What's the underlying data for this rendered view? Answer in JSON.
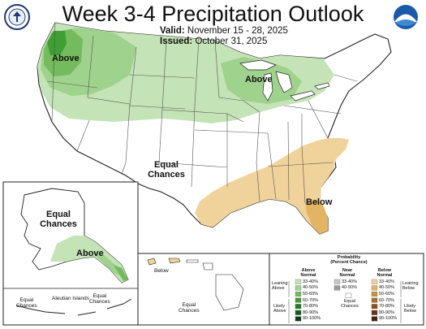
{
  "title": "Week 3-4 Precipitation Outlook",
  "valid_label": "Valid:",
  "valid_value": "November 15 - 28, 2025",
  "issued_label": "Issued:",
  "issued_value": "October 31, 2025",
  "map_labels": {
    "pnw_above": "Above",
    "greatlakes_above": "Above",
    "southeast_below": "Below",
    "conus_ec_line1": "Equal",
    "conus_ec_line2": "Chances",
    "alaska_ec_line1": "Equal",
    "alaska_ec_line2": "Chances",
    "alaska_above": "Above",
    "hawaii_below": "Below",
    "hawaii_ec_line1": "Equal",
    "hawaii_ec_line2": "Chances",
    "aleutian_label": "Aleutian Islands",
    "aleutian_ec_left_line1": "Equal",
    "aleutian_ec_left_line2": "Chances",
    "aleutian_ec_right_line1": "Equal",
    "aleutian_ec_right_line2": "Chances"
  },
  "legend": {
    "title_line1": "Probability",
    "title_line2": "(Percent Chance)",
    "col_above_line1": "Above",
    "col_above_line2": "Normal",
    "col_near_line1": "Near",
    "col_near_line2": "Normal",
    "col_below_line1": "Below",
    "col_below_line2": "Normal",
    "above_ranges": [
      "33-40%",
      "40-50%",
      "50-60%",
      "60-70%",
      "70-80%",
      "80-90%",
      "90-100%"
    ],
    "above_colors": [
      "#c4e3b7",
      "#9fd28c",
      "#73bb5d",
      "#3f9e34",
      "#227a24",
      "#155c1b",
      "#0b3d12"
    ],
    "near_ranges": [
      "33-40%",
      "40-50%"
    ],
    "near_colors": [
      "#c8c8c8",
      "#9a9a9a"
    ],
    "below_ranges": [
      "33-40%",
      "40-50%",
      "50-60%",
      "60-70%",
      "70-80%",
      "80-90%",
      "90-100%"
    ],
    "below_colors": [
      "#f0d39a",
      "#e2b463",
      "#d09432",
      "#b16b22",
      "#8c4f1a",
      "#6b3413",
      "#4a220c"
    ],
    "equal_chances_line1": "Equal",
    "equal_chances_line2": "Chances",
    "leaning_above_line1": "Leaning",
    "leaning_above_line2": "Above",
    "likely_above_line1": "Likely",
    "likely_above_line2": "Above",
    "leaning_below_line1": "Leaning",
    "leaning_below_line2": "Below",
    "likely_below_line1": "Likely",
    "likely_below_line2": "Below"
  },
  "colors": {
    "above_light": "#c4e3b7",
    "above_mid": "#9fd28c",
    "above_strong": "#73bb5d",
    "above_darker": "#3f9e34",
    "below_light": "#f0d39a",
    "below_mid": "#e2b463",
    "border": "#222222"
  },
  "icons": {
    "left_logo": "commerce-seal-icon",
    "right_logo": "noaa-logo-icon"
  }
}
